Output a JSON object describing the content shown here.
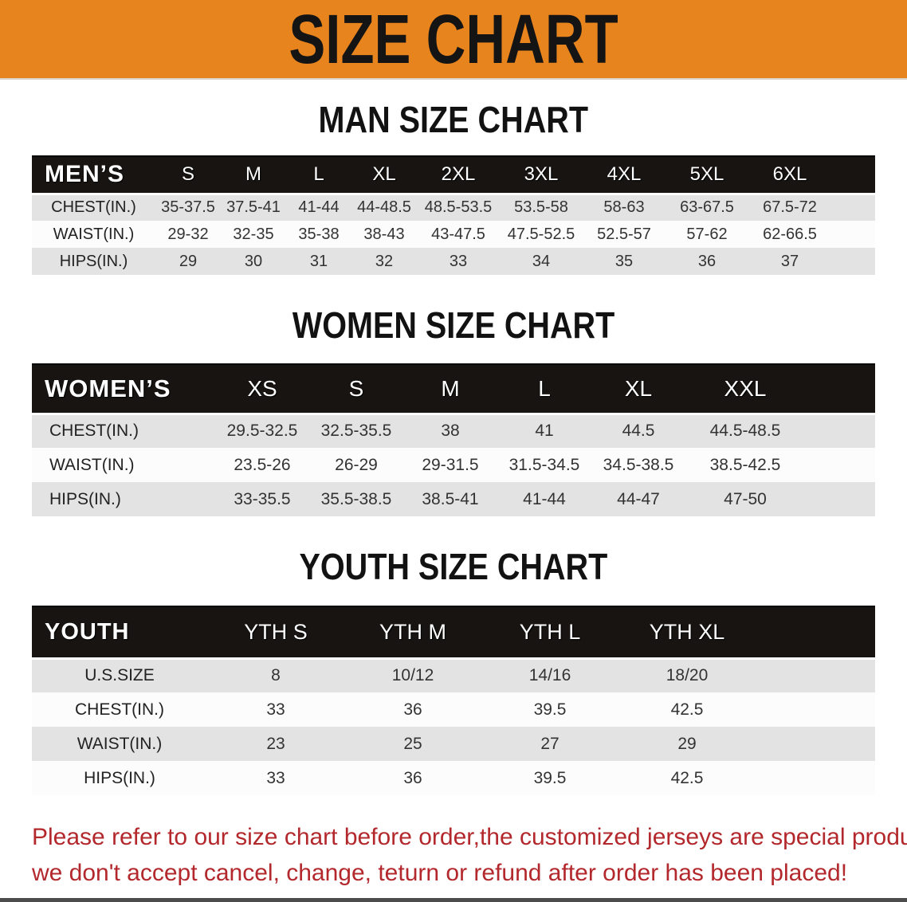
{
  "banner": {
    "title": "SIZE CHART"
  },
  "colors": {
    "banner-bg": "#E8841E",
    "banner-text": "#141414",
    "header-bg": "#171412",
    "row-gray": "#E3E3E3",
    "row-white": "#FCFCFC",
    "cell-text": "#333333",
    "footnote-red": "#B3282C",
    "bottom-bar": "#2D2D2D"
  },
  "sections": [
    {
      "id": "men",
      "heading": "MAN SIZE CHART",
      "header_label": "MEN’S",
      "columns": [
        "S",
        "M",
        "L",
        "XL",
        "2XL",
        "3XL",
        "4XL",
        "5XL",
        "6XL"
      ],
      "rows": [
        {
          "label": "CHEST(IN.)",
          "values": [
            "35-37.5",
            "37.5-41",
            "41-44",
            "44-48.5",
            "48.5-53.5",
            "53.5-58",
            "58-63",
            "63-67.5",
            "67.5-72"
          ]
        },
        {
          "label": "WAIST(IN.)",
          "values": [
            "29-32",
            "32-35",
            "35-38",
            "38-43",
            "43-47.5",
            "47.5-52.5",
            "52.5-57",
            "57-62",
            "62-66.5"
          ]
        },
        {
          "label": "HIPS(IN.)",
          "values": [
            "29",
            "30",
            "31",
            "32",
            "33",
            "34",
            "35",
            "36",
            "37"
          ]
        }
      ]
    },
    {
      "id": "women",
      "heading": "WOMEN SIZE CHART",
      "header_label": "WOMEN’S",
      "columns": [
        "XS",
        "S",
        "M",
        "L",
        "XL",
        "XXL"
      ],
      "rows": [
        {
          "label": "CHEST(IN.)",
          "values": [
            "29.5-32.5",
            "32.5-35.5",
            "38",
            "41",
            "44.5",
            "44.5-48.5"
          ]
        },
        {
          "label": "WAIST(IN.)",
          "values": [
            "23.5-26",
            "26-29",
            "29-31.5",
            "31.5-34.5",
            "34.5-38.5",
            "38.5-42.5"
          ]
        },
        {
          "label": "HIPS(IN.)",
          "values": [
            "33-35.5",
            "35.5-38.5",
            "38.5-41",
            "41-44",
            "44-47",
            "47-50"
          ]
        }
      ]
    },
    {
      "id": "youth",
      "heading": "YOUTH SIZE CHART",
      "header_label": "YOUTH",
      "columns": [
        "YTH S",
        "YTH M",
        "YTH L",
        "YTH XL"
      ],
      "rows": [
        {
          "label": "U.S.SIZE",
          "values": [
            "8",
            "10/12",
            "14/16",
            "18/20"
          ]
        },
        {
          "label": "CHEST(IN.)",
          "values": [
            "33",
            "36",
            "39.5",
            "42.5"
          ]
        },
        {
          "label": "WAIST(IN.)",
          "values": [
            "23",
            "25",
            "27",
            "29"
          ]
        },
        {
          "label": "HIPS(IN.)",
          "values": [
            "33",
            "36",
            "39.5",
            "42.5"
          ]
        }
      ]
    }
  ],
  "footnote": {
    "line1": "Please refer to our size chart before order,the customized jerseys are special products,",
    "line2": "we don't accept cancel, change, teturn or refund after order has been placed!"
  }
}
